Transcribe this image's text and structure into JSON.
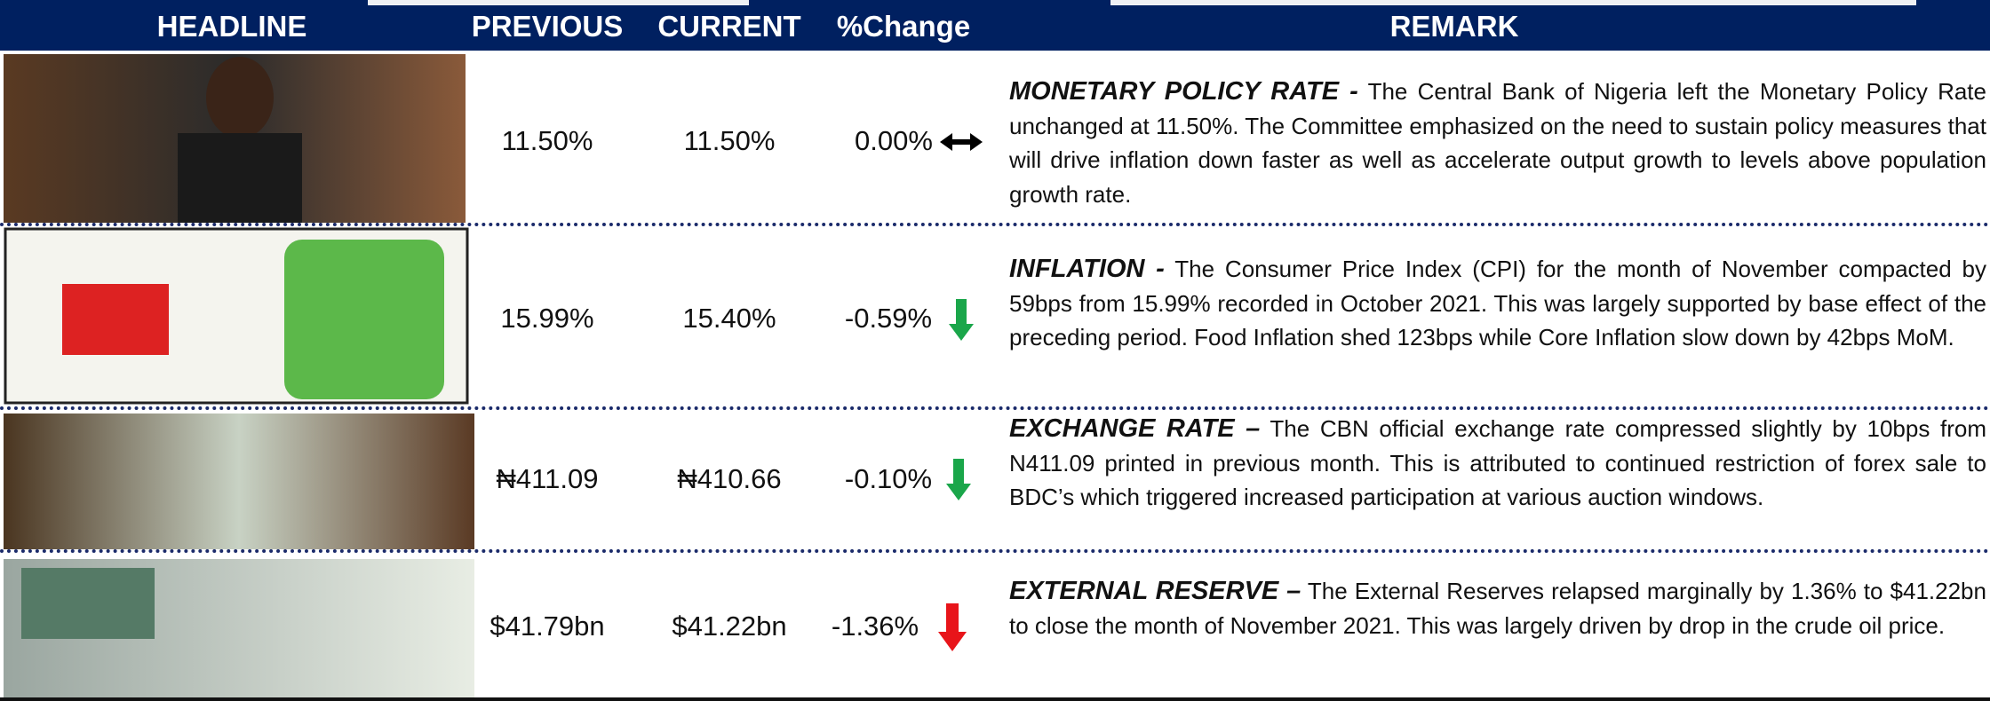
{
  "header": {
    "columns": [
      "HEADLINE",
      "PREVIOUS",
      "CURRENT",
      "%Change",
      "REMARK"
    ]
  },
  "rows": [
    {
      "previous": "11.50%",
      "current": "11.50%",
      "change": "0.00%",
      "remark_title": "MONETARY POLICY RATE -",
      "remark_text": "The Central Bank of Nigeria left the Monetary Policy Rate unchanged at 11.50%. The Committee emphasized on the need to sustain policy measures that will drive inflation down faster as well as accelerate output growth to levels above population growth rate."
    },
    {
      "previous": "15.99%",
      "current": "15.40%",
      "change": "-0.59%",
      "remark_title": "INFLATION -",
      "remark_text": "The Consumer Price Index (CPI) for the month of November compacted by 59bps from 15.99% recorded in October 2021. This was largely supported by base effect of the preceding period. Food Inflation shed 123bps while Core Inflation slow down by 42bps MoM."
    },
    {
      "previous": "₦411.09",
      "current": "₦410.66",
      "change": "-0.10%",
      "remark_title": "EXCHANGE RATE –",
      "remark_text": "The CBN official exchange rate compressed slightly by 10bps from N411.09 printed in previous month. This is attributed to continued restriction of forex sale to BDC’s which triggered increased participation at various auction windows."
    },
    {
      "previous": "$41.79bn",
      "current": "$41.22bn",
      "change": "-1.36%",
      "remark_title": "EXTERNAL RESERVE –",
      "remark_text": "The External Reserves relapsed marginally by 1.36% to $41.22bn to close the month of November 2021. This was largely driven by drop in the crude oil price."
    }
  ]
}
